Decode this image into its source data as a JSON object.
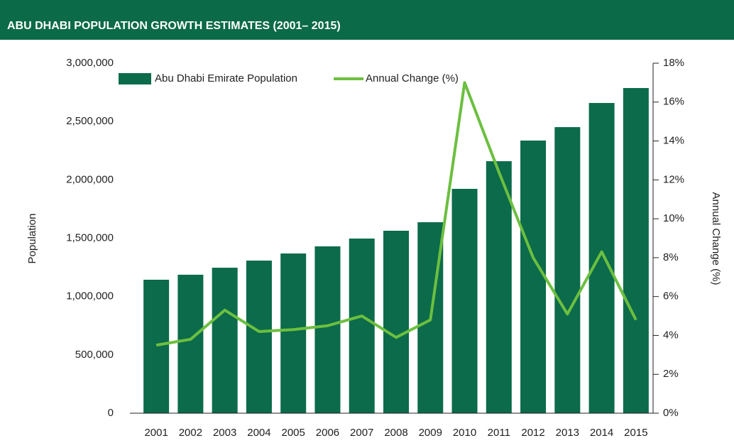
{
  "chart_data": {
    "type": "bar_line",
    "title": "ABU DHABI POPULATION GROWTH ESTIMATES (2001– 2015)",
    "y_label": "Population",
    "y2_label": "Annual Change (%)",
    "categories": [
      "2001",
      "2002",
      "2003",
      "2004",
      "2005",
      "2006",
      "2007",
      "2008",
      "2009",
      "2010",
      "2011",
      "2012",
      "2013",
      "2014",
      "2015"
    ],
    "series": [
      {
        "name": "Abu Dhabi Emirate Population",
        "type": "bar",
        "color": "#0b6b4a",
        "values": [
          1144000,
          1187000,
          1247000,
          1308000,
          1369000,
          1430000,
          1497000,
          1564000,
          1637000,
          1923000,
          2160000,
          2337000,
          2452000,
          2659000,
          2787000
        ]
      },
      {
        "name": "Annual Change (%)",
        "type": "line",
        "axis": "y2",
        "color": "#6cbf3f",
        "values": [
          3.5,
          3.8,
          5.3,
          4.2,
          4.3,
          4.5,
          5.0,
          3.9,
          4.8,
          17.0,
          12.4,
          8.0,
          5.1,
          8.3,
          4.8
        ]
      }
    ],
    "ylim": [
      0,
      3000000
    ],
    "yticks": [
      0,
      {
        "value": 500000,
        "label": "500,000"
      },
      {
        "value": 1000000,
        "label": "1,000,000"
      },
      {
        "value": 1500000,
        "label": "1,500,000"
      },
      {
        "value": 2000000,
        "label": "2,000,000"
      },
      {
        "value": 2500000,
        "label": "2,500,000"
      },
      {
        "value": 3000000,
        "label": "3,000,000"
      }
    ],
    "y2lim": [
      0,
      18
    ],
    "y2ticks": [
      {
        "value": 0,
        "label": "0%"
      },
      {
        "value": 2,
        "label": "2%"
      },
      {
        "value": 4,
        "label": "4%"
      },
      {
        "value": 6,
        "label": "6%"
      },
      {
        "value": 8,
        "label": "8%"
      },
      {
        "value": 10,
        "label": "10%"
      },
      {
        "value": 12,
        "label": "12%"
      },
      {
        "value": 14,
        "label": "14%"
      },
      {
        "value": 16,
        "label": "16%"
      },
      {
        "value": 18,
        "label": "18%"
      }
    ],
    "legend": "top-left"
  }
}
